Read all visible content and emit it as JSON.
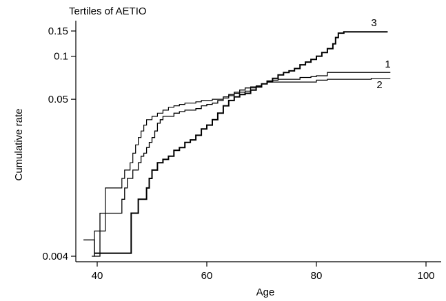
{
  "chart_data": {
    "type": "line",
    "title": "Tertiles of AETIO",
    "xlabel": "Age",
    "ylabel": "Cumulative rate",
    "xlim": [
      37,
      101
    ],
    "ylim": [
      0.004,
      0.17
    ],
    "y_scale": "log",
    "x_ticks": [
      40,
      60,
      80,
      100
    ],
    "x_tick_labels": [
      "40",
      "60",
      "80",
      "100"
    ],
    "y_ticks": [
      0.004,
      0.05,
      0.1,
      0.15
    ],
    "y_tick_labels": [
      "0.004",
      "0.05",
      "0.1",
      "0.15"
    ],
    "grid": false,
    "legend": "inline labels at right end of lines",
    "series": [
      {
        "name": "1",
        "color": "#000000",
        "points": [
          [
            37.5,
            0.0052
          ],
          [
            39.5,
            0.0052
          ],
          [
            39.5,
            0.004
          ],
          [
            40.5,
            0.004
          ],
          [
            40.5,
            0.008
          ],
          [
            42.0,
            0.008
          ],
          [
            44.0,
            0.008
          ],
          [
            44.5,
            0.01
          ],
          [
            45.0,
            0.012
          ],
          [
            45.5,
            0.014
          ],
          [
            46.0,
            0.014
          ],
          [
            46.5,
            0.016
          ],
          [
            47.0,
            0.016
          ],
          [
            47.5,
            0.018
          ],
          [
            48.0,
            0.02
          ],
          [
            48.5,
            0.021
          ],
          [
            49.0,
            0.023
          ],
          [
            49.5,
            0.025
          ],
          [
            50.0,
            0.027
          ],
          [
            50.5,
            0.03
          ],
          [
            51.0,
            0.034
          ],
          [
            51.5,
            0.036
          ],
          [
            52.0,
            0.038
          ],
          [
            53.0,
            0.038
          ],
          [
            54.0,
            0.04
          ],
          [
            55.0,
            0.041
          ],
          [
            56.0,
            0.042
          ],
          [
            57.0,
            0.042
          ],
          [
            58.0,
            0.043
          ],
          [
            59.0,
            0.045
          ],
          [
            60.0,
            0.046
          ],
          [
            61.0,
            0.047
          ],
          [
            62.0,
            0.049
          ],
          [
            63.0,
            0.052
          ],
          [
            64.0,
            0.054
          ],
          [
            65.0,
            0.056
          ],
          [
            66.0,
            0.058
          ],
          [
            67.0,
            0.06
          ],
          [
            68.0,
            0.061
          ],
          [
            69.0,
            0.062
          ],
          [
            70.0,
            0.064
          ],
          [
            71.0,
            0.066
          ],
          [
            72.0,
            0.068
          ],
          [
            73.0,
            0.069
          ],
          [
            75.0,
            0.069
          ],
          [
            77.0,
            0.071
          ],
          [
            79.0,
            0.072
          ],
          [
            80.0,
            0.073
          ],
          [
            82.0,
            0.077
          ],
          [
            84.0,
            0.077
          ],
          [
            88.0,
            0.077
          ],
          [
            93.5,
            0.077
          ]
        ]
      },
      {
        "name": "2",
        "color": "#000000",
        "points": [
          [
            39.0,
            0.004
          ],
          [
            39.5,
            0.004
          ],
          [
            39.5,
            0.006
          ],
          [
            40.5,
            0.006
          ],
          [
            41.0,
            0.006
          ],
          [
            41.5,
            0.012
          ],
          [
            44.0,
            0.012
          ],
          [
            44.5,
            0.014
          ],
          [
            45.0,
            0.016
          ],
          [
            46.0,
            0.018
          ],
          [
            46.5,
            0.021
          ],
          [
            47.0,
            0.024
          ],
          [
            47.5,
            0.027
          ],
          [
            48.0,
            0.03
          ],
          [
            48.5,
            0.033
          ],
          [
            49.0,
            0.036
          ],
          [
            50.0,
            0.038
          ],
          [
            51.0,
            0.04
          ],
          [
            52.0,
            0.042
          ],
          [
            53.0,
            0.044
          ],
          [
            54.0,
            0.045
          ],
          [
            55.0,
            0.046
          ],
          [
            56.0,
            0.047
          ],
          [
            57.0,
            0.047
          ],
          [
            58.0,
            0.048
          ],
          [
            59.0,
            0.049
          ],
          [
            60.0,
            0.049
          ],
          [
            61.0,
            0.05
          ],
          [
            62.0,
            0.05
          ],
          [
            63.0,
            0.051
          ],
          [
            64.0,
            0.053
          ],
          [
            65.0,
            0.055
          ],
          [
            66.0,
            0.056
          ],
          [
            67.0,
            0.057
          ],
          [
            68.0,
            0.06
          ],
          [
            69.0,
            0.062
          ],
          [
            70.0,
            0.064
          ],
          [
            71.0,
            0.066
          ],
          [
            72.0,
            0.066
          ],
          [
            74.0,
            0.066
          ],
          [
            76.0,
            0.066
          ],
          [
            78.0,
            0.066
          ],
          [
            80.0,
            0.068
          ],
          [
            82.0,
            0.069
          ],
          [
            86.0,
            0.069
          ],
          [
            90.0,
            0.07
          ],
          [
            93.5,
            0.07
          ]
        ]
      },
      {
        "name": "3",
        "color": "#000000",
        "points": [
          [
            39.5,
            0.0042
          ],
          [
            40.0,
            0.0042
          ],
          [
            41.0,
            0.0042
          ],
          [
            46.0,
            0.0042
          ],
          [
            46.2,
            0.008
          ],
          [
            47.0,
            0.008
          ],
          [
            47.5,
            0.01
          ],
          [
            48.5,
            0.01
          ],
          [
            49.0,
            0.012
          ],
          [
            49.5,
            0.014
          ],
          [
            50.0,
            0.016
          ],
          [
            51.0,
            0.018
          ],
          [
            52.0,
            0.019
          ],
          [
            53.0,
            0.02
          ],
          [
            54.0,
            0.022
          ],
          [
            55.0,
            0.023
          ],
          [
            56.0,
            0.025
          ],
          [
            57.0,
            0.026
          ],
          [
            58.0,
            0.028
          ],
          [
            59.0,
            0.031
          ],
          [
            60.0,
            0.033
          ],
          [
            61.0,
            0.036
          ],
          [
            62.0,
            0.04
          ],
          [
            63.0,
            0.045
          ],
          [
            64.0,
            0.049
          ],
          [
            65.0,
            0.052
          ],
          [
            66.0,
            0.054
          ],
          [
            67.0,
            0.055
          ],
          [
            68.0,
            0.058
          ],
          [
            69.0,
            0.061
          ],
          [
            70.0,
            0.064
          ],
          [
            71.0,
            0.067
          ],
          [
            72.0,
            0.07
          ],
          [
            73.0,
            0.074
          ],
          [
            74.0,
            0.077
          ],
          [
            75.0,
            0.079
          ],
          [
            76.0,
            0.082
          ],
          [
            77.0,
            0.087
          ],
          [
            78.0,
            0.091
          ],
          [
            79.0,
            0.095
          ],
          [
            80.0,
            0.1
          ],
          [
            81.0,
            0.106
          ],
          [
            82.0,
            0.113
          ],
          [
            83.0,
            0.122
          ],
          [
            83.5,
            0.135
          ],
          [
            84.0,
            0.145
          ],
          [
            85.0,
            0.148
          ],
          [
            88.0,
            0.148
          ],
          [
            93.0,
            0.148
          ]
        ]
      }
    ]
  }
}
